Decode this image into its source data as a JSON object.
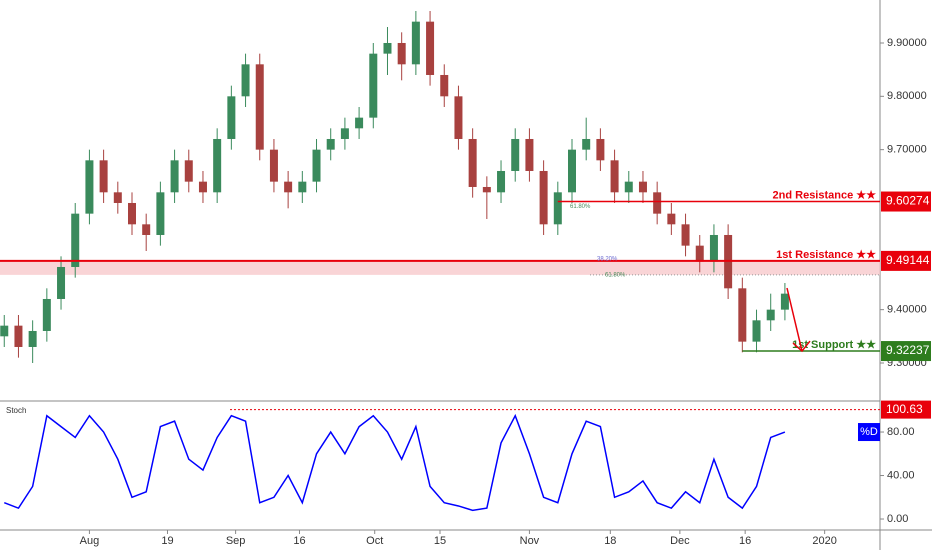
{
  "chart_data": [
    {
      "type": "candlestick",
      "xlim": [
        -0.3,
        61.7
      ],
      "ylim": [
        9.2306,
        9.9806
      ],
      "xticks": [
        {
          "value": 6,
          "label": "Aug"
        },
        {
          "value": 11.5,
          "label": "19"
        },
        {
          "value": 16.3,
          "label": "Sep"
        },
        {
          "value": 20.8,
          "label": "16"
        },
        {
          "value": 26.1,
          "label": "Oct"
        },
        {
          "value": 30.7,
          "label": "15"
        },
        {
          "value": 37,
          "label": "Nov"
        },
        {
          "value": 42.7,
          "label": "18"
        },
        {
          "value": 47.6,
          "label": "Dec"
        },
        {
          "value": 52.2,
          "label": "16"
        },
        {
          "value": 57.8,
          "label": "2020"
        }
      ],
      "yticks": [
        {
          "value": 9.9,
          "label": "9.90000"
        },
        {
          "value": 9.8,
          "label": "9.80000"
        },
        {
          "value": 9.7,
          "label": "9.70000"
        },
        {
          "value": 9.4,
          "label": "9.40000"
        },
        {
          "value": 9.3,
          "label": "9.30000"
        }
      ],
      "up_color": "#3a8a5c",
      "down_color": "#a8413f",
      "open": [
        9.35,
        9.37,
        9.33,
        9.36,
        9.42,
        9.48,
        9.58,
        9.68,
        9.62,
        9.6,
        9.56,
        9.54,
        9.62,
        9.68,
        9.64,
        9.62,
        9.72,
        9.8,
        9.86,
        9.7,
        9.64,
        9.62,
        9.64,
        9.7,
        9.72,
        9.74,
        9.76,
        9.88,
        9.9,
        9.86,
        9.94,
        9.84,
        9.8,
        9.72,
        9.63,
        9.62,
        9.66,
        9.72,
        9.66,
        9.56,
        9.62,
        9.7,
        9.72,
        9.68,
        9.62,
        9.64,
        9.62,
        9.58,
        9.56,
        9.52,
        9.49,
        9.54,
        9.44,
        9.34,
        9.38,
        9.4
      ],
      "high": [
        9.39,
        9.39,
        9.38,
        9.44,
        9.5,
        9.6,
        9.7,
        9.7,
        9.64,
        9.62,
        9.58,
        9.64,
        9.7,
        9.7,
        9.66,
        9.74,
        9.82,
        9.88,
        9.88,
        9.72,
        9.66,
        9.66,
        9.72,
        9.74,
        9.76,
        9.78,
        9.9,
        9.93,
        9.92,
        9.96,
        9.96,
        9.86,
        9.82,
        9.74,
        9.65,
        9.68,
        9.74,
        9.74,
        9.68,
        9.64,
        9.72,
        9.76,
        9.74,
        9.7,
        9.66,
        9.66,
        9.64,
        9.6,
        9.58,
        9.54,
        9.56,
        9.56,
        9.46,
        9.4,
        9.43,
        9.45
      ],
      "low": [
        9.33,
        9.31,
        9.3,
        9.34,
        9.4,
        9.46,
        9.56,
        9.6,
        9.58,
        9.54,
        9.51,
        9.52,
        9.6,
        9.62,
        9.6,
        9.6,
        9.7,
        9.78,
        9.68,
        9.62,
        9.59,
        9.6,
        9.62,
        9.68,
        9.7,
        9.72,
        9.74,
        9.84,
        9.83,
        9.84,
        9.82,
        9.78,
        9.7,
        9.61,
        9.57,
        9.6,
        9.64,
        9.64,
        9.54,
        9.54,
        9.6,
        9.68,
        9.66,
        9.6,
        9.6,
        9.6,
        9.56,
        9.54,
        9.5,
        9.47,
        9.47,
        9.42,
        9.32,
        9.32,
        9.36,
        9.38
      ],
      "close": [
        9.37,
        9.33,
        9.36,
        9.42,
        9.48,
        9.58,
        9.68,
        9.62,
        9.6,
        9.56,
        9.54,
        9.62,
        9.68,
        9.64,
        9.62,
        9.72,
        9.8,
        9.86,
        9.7,
        9.64,
        9.62,
        9.64,
        9.7,
        9.72,
        9.74,
        9.76,
        9.88,
        9.9,
        9.86,
        9.94,
        9.84,
        9.8,
        9.72,
        9.63,
        9.62,
        9.66,
        9.72,
        9.66,
        9.56,
        9.62,
        9.7,
        9.72,
        9.68,
        9.62,
        9.64,
        9.62,
        9.58,
        9.56,
        9.52,
        9.49,
        9.54,
        9.44,
        9.34,
        9.38,
        9.4,
        9.43
      ],
      "levels": [
        {
          "name": "2nd Resistance ★★",
          "value": 9.60274,
          "color": "#e8000b"
        },
        {
          "name": "1st Resistance ★★",
          "value": 9.49144,
          "color": "#e8000b"
        },
        {
          "name": "1st Support ★★",
          "value": 9.32237,
          "color": "#2e7d1e"
        }
      ],
      "annotations": [
        "61.80%",
        "38.20%",
        "61.80%"
      ]
    },
    {
      "type": "line",
      "title": "Stoch",
      "ylim": [
        -10.1,
        106.7
      ],
      "yticks": [
        {
          "value": 80,
          "label": "80.00"
        },
        {
          "value": 40,
          "label": "40.00"
        },
        {
          "value": 0,
          "label": "0.00"
        }
      ],
      "level": 100.63,
      "level_color": "#e8000b",
      "series": [
        {
          "name": "%D",
          "color": "#0000ff",
          "values": [
            15,
            10,
            30,
            95,
            85,
            75,
            95,
            80,
            55,
            20,
            25,
            85,
            90,
            55,
            45,
            75,
            95,
            90,
            15,
            20,
            40,
            15,
            60,
            80,
            60,
            85,
            95,
            80,
            55,
            85,
            30,
            15,
            12,
            8,
            10,
            70,
            95,
            60,
            20,
            15,
            60,
            90,
            85,
            20,
            25,
            35,
            15,
            10,
            25,
            15,
            55,
            20,
            10,
            30,
            75,
            80
          ]
        }
      ]
    }
  ]
}
